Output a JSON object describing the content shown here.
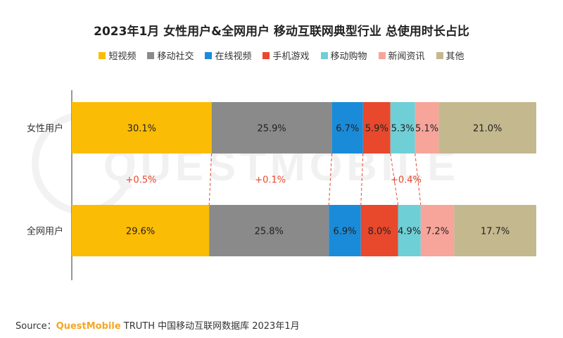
{
  "title": "2023年1月 女性用户&全网用户 移动互联网典型行业 总使用时长占比",
  "source": {
    "label": "Source：",
    "brand": "QuestMobile",
    "text": " TRUTH 中国移动互联网数据库 2023年1月"
  },
  "watermark": "QUESTMOBILE",
  "colors": {
    "短视频": "#FBBC05",
    "移动社交": "#8A8A8A",
    "在线视频": "#1A8BD8",
    "手机游戏": "#E8482C",
    "移动购物": "#6FCFD6",
    "新闻资讯": "#F7A59A",
    "其他": "#C4B88E"
  },
  "chart_data": {
    "type": "bar",
    "orientation": "horizontal",
    "stacked": true,
    "title": "2023年1月 女性用户&全网用户 移动互联网典型行业 总使用时长占比",
    "categories": [
      "女性用户",
      "全网用户"
    ],
    "series": [
      {
        "name": "短视频",
        "values": [
          30.1,
          29.6
        ]
      },
      {
        "name": "移动社交",
        "values": [
          25.9,
          25.8
        ]
      },
      {
        "name": "在线视频",
        "values": [
          6.7,
          6.9
        ]
      },
      {
        "name": "手机游戏",
        "values": [
          5.9,
          8.0
        ]
      },
      {
        "name": "移动购物",
        "values": [
          5.3,
          4.9
        ]
      },
      {
        "name": "新闻资讯",
        "values": [
          5.1,
          7.2
        ]
      },
      {
        "name": "其他",
        "values": [
          21.0,
          17.7
        ]
      }
    ],
    "value_labels": [
      [
        "30.1%",
        "25.9%",
        "6.7%",
        "5.9%",
        "5.3%",
        "5.1%",
        "21.0%"
      ],
      [
        "29.6%",
        "25.8%",
        "6.9%",
        "8.0%",
        "4.9%",
        "7.2%",
        "17.7%"
      ]
    ],
    "annotations": [
      {
        "text": "+0.5%",
        "series": "短视频"
      },
      {
        "text": "+0.1%",
        "series": "移动社交"
      },
      {
        "text": "+0.4%",
        "series": "移动购物"
      }
    ],
    "annotation_links": [
      "短视频",
      "移动社交",
      "在线视频",
      "手机游戏",
      "移动购物"
    ],
    "legend_position": "top-center",
    "grid": false
  }
}
